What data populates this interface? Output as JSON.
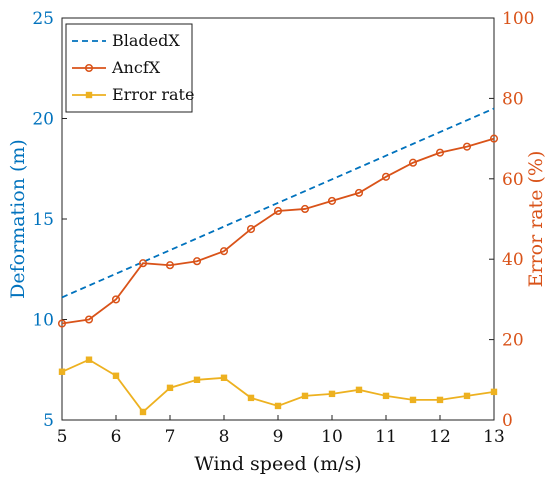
{
  "chart_data": {
    "type": "line",
    "xlabel": "Wind speed (m/s)",
    "ylabel_left": "Deformation (m)",
    "ylabel_right": "Error rate (%)",
    "xlim": [
      5,
      13
    ],
    "ylim_left": [
      5,
      25
    ],
    "ylim_right": [
      0,
      100
    ],
    "x_ticks": [
      5,
      6,
      7,
      8,
      9,
      10,
      11,
      12,
      13
    ],
    "y_left_ticks": [
      5,
      10,
      15,
      20,
      25
    ],
    "y_right_ticks": [
      0,
      20,
      40,
      60,
      80,
      100
    ],
    "grid": false,
    "legend_position": "top-left",
    "colors": {
      "left_axis": "#0072BD",
      "right_axis": "#D95319",
      "bladedx": "#0072BD",
      "ancfx": "#D95319",
      "error": "#EDB120"
    },
    "series": [
      {
        "name": "BladedX",
        "axis": "left",
        "style": "dashed",
        "marker": "none",
        "x": [
          5,
          13
        ],
        "values": [
          11.1,
          20.5
        ]
      },
      {
        "name": "AncfX",
        "axis": "left",
        "style": "solid",
        "marker": "circle",
        "x": [
          5,
          5.5,
          6,
          6.5,
          7,
          7.5,
          8,
          8.5,
          9,
          9.5,
          10,
          10.5,
          11,
          11.5,
          12,
          12.5,
          13
        ],
        "values": [
          9.8,
          10.0,
          11.0,
          12.8,
          12.7,
          12.9,
          13.4,
          14.5,
          15.4,
          15.5,
          15.9,
          16.3,
          17.1,
          17.8,
          18.3,
          18.6,
          19.0
        ]
      },
      {
        "name": "Error rate",
        "axis": "right",
        "style": "solid",
        "marker": "square",
        "x": [
          5,
          5.5,
          6,
          6.5,
          7,
          7.5,
          8,
          8.5,
          9,
          9.5,
          10,
          10.5,
          11,
          11.5,
          12,
          12.5,
          13
        ],
        "values": [
          12,
          15,
          11,
          2,
          8,
          10,
          10.5,
          5.5,
          3.5,
          6,
          6.5,
          7.5,
          6,
          5,
          5,
          6,
          7
        ]
      }
    ]
  }
}
